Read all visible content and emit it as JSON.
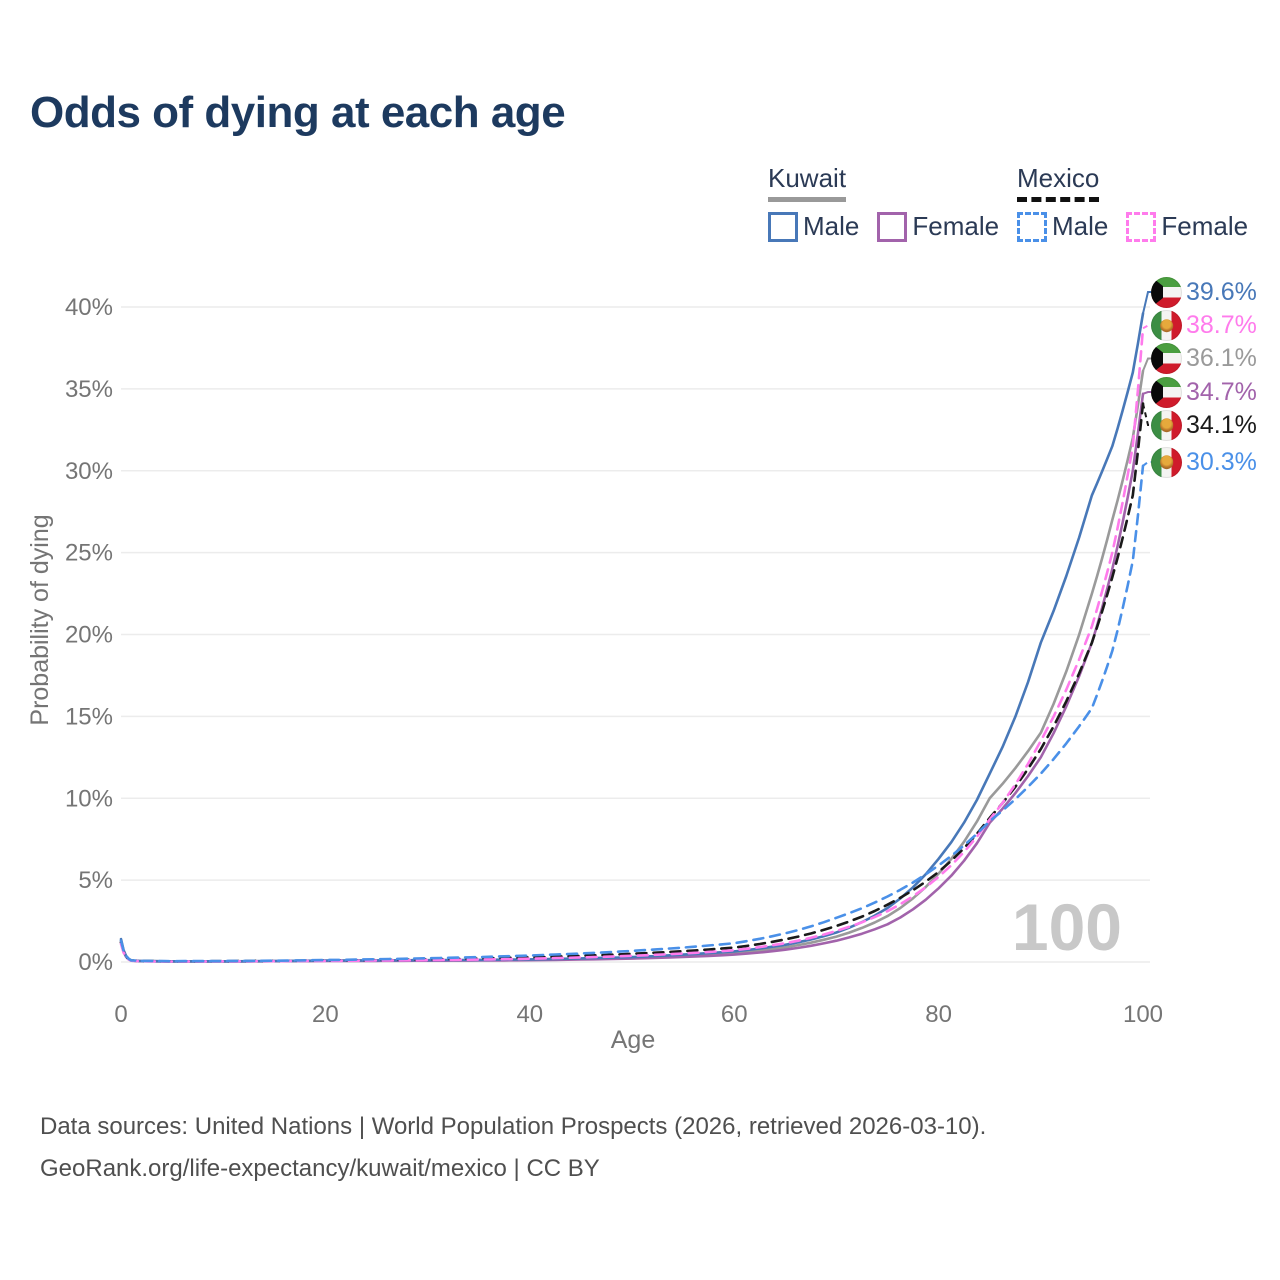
{
  "title": "Odds of dying at each age",
  "legend": {
    "groups": [
      {
        "country": "Kuwait",
        "line_style": "solid",
        "underline_color": "#999999",
        "items": [
          {
            "label": "Male",
            "color": "#4878b8",
            "dashed": false
          },
          {
            "label": "Female",
            "color": "#a263ab",
            "dashed": false
          }
        ]
      },
      {
        "country": "Mexico",
        "line_style": "dashed",
        "underline_color": "#111111",
        "items": [
          {
            "label": "Male",
            "color": "#4a90e8",
            "dashed": true
          },
          {
            "label": "Female",
            "color": "#ff7bec",
            "dashed": true
          }
        ]
      }
    ]
  },
  "chart_data": {
    "type": "line",
    "title": "Odds of dying at each age",
    "xlabel": "Age",
    "ylabel": "Probability of dying",
    "xlim": [
      0,
      100
    ],
    "ylim": [
      0,
      40
    ],
    "x_ticks": [
      0,
      20,
      40,
      60,
      80,
      100
    ],
    "y_ticks": [
      0,
      5,
      10,
      15,
      20,
      25,
      30,
      35,
      40
    ],
    "y_tick_suffix": "%",
    "grid": "horizontal",
    "legend_position": "top-right",
    "watermark": "100",
    "ages": [
      0,
      1,
      2,
      5,
      10,
      15,
      20,
      25,
      30,
      35,
      40,
      45,
      50,
      55,
      60,
      65,
      70,
      75,
      80,
      85,
      90,
      95,
      97,
      99,
      100
    ],
    "series": [
      {
        "id": "kuwait-all",
        "name": "Kuwait",
        "country": "Kuwait",
        "sex": "Both",
        "color": "#9a9a9a",
        "dashed": false,
        "end_label": "36.1%",
        "label_row": 2,
        "values": [
          1.3,
          0.09,
          0.06,
          0.035,
          0.035,
          0.05,
          0.08,
          0.09,
          0.1,
          0.11,
          0.14,
          0.18,
          0.26,
          0.38,
          0.55,
          0.9,
          1.55,
          2.8,
          5.4,
          10.0,
          14.0,
          22.5,
          27.0,
          32.0,
          36.1
        ]
      },
      {
        "id": "kuwait-female",
        "name": "Kuwait Female",
        "country": "Kuwait",
        "sex": "Female",
        "color": "#a263ab",
        "dashed": false,
        "end_label": "34.7%",
        "label_row": 3,
        "values": [
          1.2,
          0.08,
          0.05,
          0.03,
          0.03,
          0.05,
          0.06,
          0.07,
          0.08,
          0.09,
          0.11,
          0.15,
          0.21,
          0.31,
          0.45,
          0.75,
          1.3,
          2.3,
          4.5,
          8.5,
          12.5,
          19.5,
          24.0,
          30.0,
          34.7
        ]
      },
      {
        "id": "kuwait-male",
        "name": "Kuwait Male",
        "country": "Kuwait",
        "sex": "Male",
        "color": "#4878b8",
        "dashed": false,
        "end_label": "39.6%",
        "label_row": 0,
        "values": [
          1.4,
          0.1,
          0.06,
          0.04,
          0.04,
          0.06,
          0.09,
          0.1,
          0.11,
          0.13,
          0.16,
          0.22,
          0.3,
          0.45,
          0.65,
          1.05,
          1.8,
          3.3,
          6.3,
          11.5,
          19.5,
          28.5,
          31.5,
          36.0,
          39.6
        ]
      },
      {
        "id": "mexico-all",
        "name": "Mexico",
        "country": "Mexico",
        "sex": "Both",
        "color": "#1a1a1a",
        "dashed": true,
        "end_label": "34.1%",
        "label_row": 4,
        "values": [
          1.2,
          0.09,
          0.06,
          0.04,
          0.05,
          0.07,
          0.09,
          0.12,
          0.16,
          0.21,
          0.28,
          0.38,
          0.5,
          0.66,
          0.88,
          1.38,
          2.2,
          3.5,
          5.5,
          8.8,
          13.0,
          19.5,
          23.5,
          28.5,
          34.1
        ]
      },
      {
        "id": "mexico-female",
        "name": "Mexico Female",
        "country": "Mexico",
        "sex": "Female",
        "color": "#ff7bec",
        "dashed": true,
        "end_label": "38.7%",
        "label_row": 1,
        "values": [
          1.1,
          0.08,
          0.05,
          0.03,
          0.04,
          0.05,
          0.07,
          0.09,
          0.12,
          0.15,
          0.2,
          0.28,
          0.38,
          0.52,
          0.72,
          1.15,
          1.9,
          3.1,
          5.2,
          8.7,
          13.5,
          20.5,
          25.0,
          31.5,
          38.7
        ]
      },
      {
        "id": "mexico-male",
        "name": "Mexico Male",
        "country": "Mexico",
        "sex": "Male",
        "color": "#4a90e8",
        "dashed": true,
        "end_label": "30.3%",
        "label_row": 5,
        "values": [
          1.3,
          0.1,
          0.07,
          0.05,
          0.06,
          0.08,
          0.12,
          0.17,
          0.23,
          0.3,
          0.4,
          0.52,
          0.68,
          0.88,
          1.15,
          1.75,
          2.7,
          4.0,
          5.9,
          8.6,
          11.5,
          15.5,
          19.0,
          24.5,
          30.3
        ]
      }
    ],
    "colors": {
      "title": "#1d3a5f",
      "tick": "#757575",
      "axis_label": "#757575",
      "grid": "#ececec",
      "watermark": "#c8c8c8"
    }
  },
  "source": {
    "line1": "Data sources: United Nations | World Population Prospects (2026, retrieved 2026-03-10).",
    "line2": "GeoRank.org/life-expectancy/kuwait/mexico | CC BY"
  }
}
